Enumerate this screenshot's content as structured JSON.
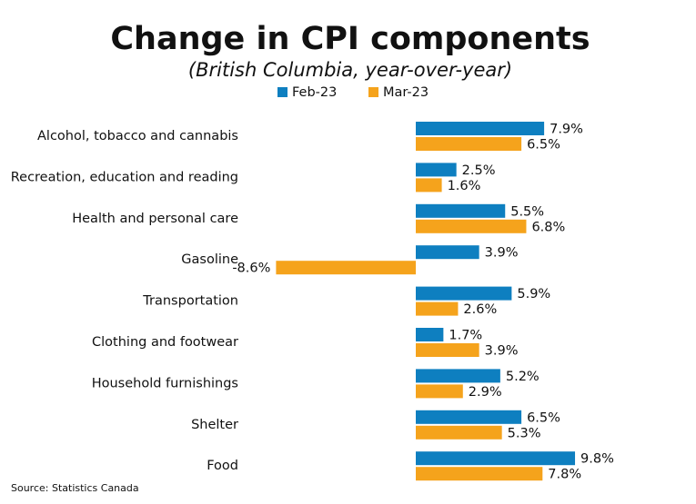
{
  "chart_data": {
    "type": "bar",
    "orientation": "horizontal",
    "title": "Change in CPI components",
    "subtitle": "(British Columbia, year-over-year)",
    "source": "Source: Statistics Canada",
    "categories": [
      "Alcohol, tobacco and cannabis",
      "Recreation, education and reading",
      "Health and personal care",
      "Gasoline",
      "Transportation",
      "Clothing and footwear",
      "Household furnishings",
      "Shelter",
      "Food"
    ],
    "series": [
      {
        "name": "Feb-23",
        "color": "#0e7fc0",
        "values": [
          7.9,
          2.5,
          5.5,
          3.9,
          5.9,
          1.7,
          5.2,
          6.5,
          9.8
        ],
        "value_labels": [
          "7.9%",
          "2.5%",
          "5.5%",
          "3.9%",
          "5.9%",
          "1.7%",
          "5.2%",
          "6.5%",
          "9.8%"
        ]
      },
      {
        "name": "Mar-23",
        "color": "#f5a31c",
        "values": [
          6.5,
          1.6,
          6.8,
          -8.6,
          2.6,
          3.9,
          2.9,
          5.3,
          7.8
        ],
        "value_labels": [
          "6.5%",
          "1.6%",
          "6.8%",
          "-8.6%",
          "2.6%",
          "3.9%",
          "2.9%",
          "5.3%",
          "7.8%"
        ]
      }
    ],
    "legend": "top"
  }
}
